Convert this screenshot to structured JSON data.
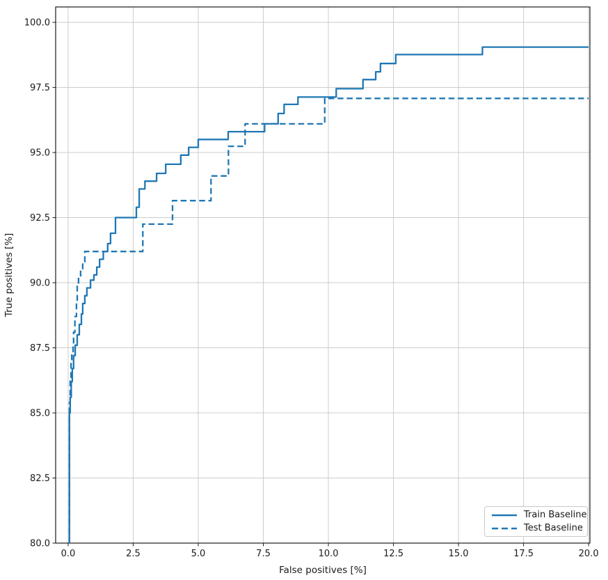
{
  "figure": {
    "background": "#ffffff",
    "grid_color": "#cccccc",
    "spine_color": "#1a1a1a",
    "accent_color": "#1f77b4"
  },
  "legend": {
    "position": "lower right",
    "items": [
      {
        "label": "Train Baseline",
        "style": "solid"
      },
      {
        "label": "Test Baseline",
        "style": "dashed"
      }
    ]
  },
  "chart_data": {
    "type": "line",
    "subtype": "roc-step-curves",
    "title": "",
    "xlabel": "False positives [%]",
    "ylabel": "True positives [%]",
    "xlim": [
      -0.48,
      20.05
    ],
    "ylim": [
      80,
      100.59
    ],
    "grid": true,
    "legend_position": "lower right",
    "x_ticks": [
      0,
      2.5,
      5,
      7.5,
      10,
      12.5,
      15,
      17.5,
      20
    ],
    "x_tick_labels": [
      "0.0",
      "2.5",
      "5.0",
      "7.5",
      "10.0",
      "12.5",
      "15.0",
      "17.5",
      "20.0"
    ],
    "y_ticks": [
      80,
      82.5,
      85,
      87.5,
      90,
      92.5,
      95,
      97.5,
      100
    ],
    "y_tick_labels": [
      "80.0",
      "82.5",
      "85.0",
      "87.5",
      "90.0",
      "92.5",
      "95.0",
      "97.5",
      "100.0"
    ],
    "series": [
      {
        "name": "Train Baseline",
        "style": "solid",
        "color": "#1f77b4",
        "points": [
          [
            0.05,
            80.0
          ],
          [
            0.05,
            85.0
          ],
          [
            0.08,
            85.6
          ],
          [
            0.12,
            86.2
          ],
          [
            0.16,
            86.7
          ],
          [
            0.21,
            87.2
          ],
          [
            0.27,
            87.6
          ],
          [
            0.35,
            88.0
          ],
          [
            0.43,
            88.4
          ],
          [
            0.51,
            88.8
          ],
          [
            0.56,
            89.2
          ],
          [
            0.64,
            89.5
          ],
          [
            0.72,
            89.8
          ],
          [
            0.86,
            90.1
          ],
          [
            0.99,
            90.3
          ],
          [
            1.1,
            90.6
          ],
          [
            1.21,
            90.9
          ],
          [
            1.35,
            91.2
          ],
          [
            1.52,
            91.5
          ],
          [
            1.63,
            91.9
          ],
          [
            1.82,
            92.5
          ],
          [
            2.62,
            92.9
          ],
          [
            2.73,
            93.6
          ],
          [
            2.95,
            93.9
          ],
          [
            3.4,
            94.2
          ],
          [
            3.75,
            94.55
          ],
          [
            4.33,
            94.9
          ],
          [
            4.63,
            95.2
          ],
          [
            5.0,
            95.5
          ],
          [
            6.15,
            95.8
          ],
          [
            7.55,
            96.1
          ],
          [
            8.07,
            96.5
          ],
          [
            8.3,
            96.85
          ],
          [
            8.83,
            97.13
          ],
          [
            10.3,
            97.45
          ],
          [
            11.33,
            97.8
          ],
          [
            11.82,
            98.1
          ],
          [
            12.0,
            98.42
          ],
          [
            12.59,
            98.76
          ],
          [
            15.92,
            99.05
          ],
          [
            20.0,
            99.05
          ]
        ]
      },
      {
        "name": "Test Baseline",
        "style": "dashed",
        "color": "#1f77b4",
        "points": [
          [
            0.05,
            80.0
          ],
          [
            0.05,
            85.4
          ],
          [
            0.08,
            86.3
          ],
          [
            0.11,
            87.0
          ],
          [
            0.14,
            87.3
          ],
          [
            0.19,
            87.6
          ],
          [
            0.21,
            88.1
          ],
          [
            0.26,
            88.7
          ],
          [
            0.32,
            89.3
          ],
          [
            0.35,
            89.9
          ],
          [
            0.4,
            90.2
          ],
          [
            0.48,
            90.5
          ],
          [
            0.56,
            90.8
          ],
          [
            0.64,
            91.2
          ],
          [
            2.87,
            92.25
          ],
          [
            4.01,
            93.15
          ],
          [
            5.49,
            94.1
          ],
          [
            6.16,
            95.24
          ],
          [
            6.8,
            96.1
          ],
          [
            9.86,
            97.08
          ],
          [
            20.0,
            97.08
          ]
        ]
      }
    ]
  }
}
